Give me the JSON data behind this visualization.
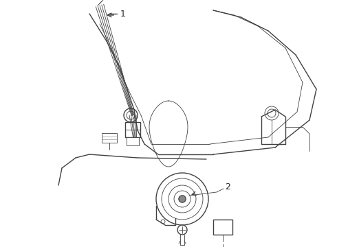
{
  "background_color": "#ffffff",
  "line_color": "#404040",
  "lw": 1.0,
  "tlw": 0.6,
  "label_fontsize": 9,
  "fig_width": 4.9,
  "fig_height": 3.6,
  "dpi": 100
}
